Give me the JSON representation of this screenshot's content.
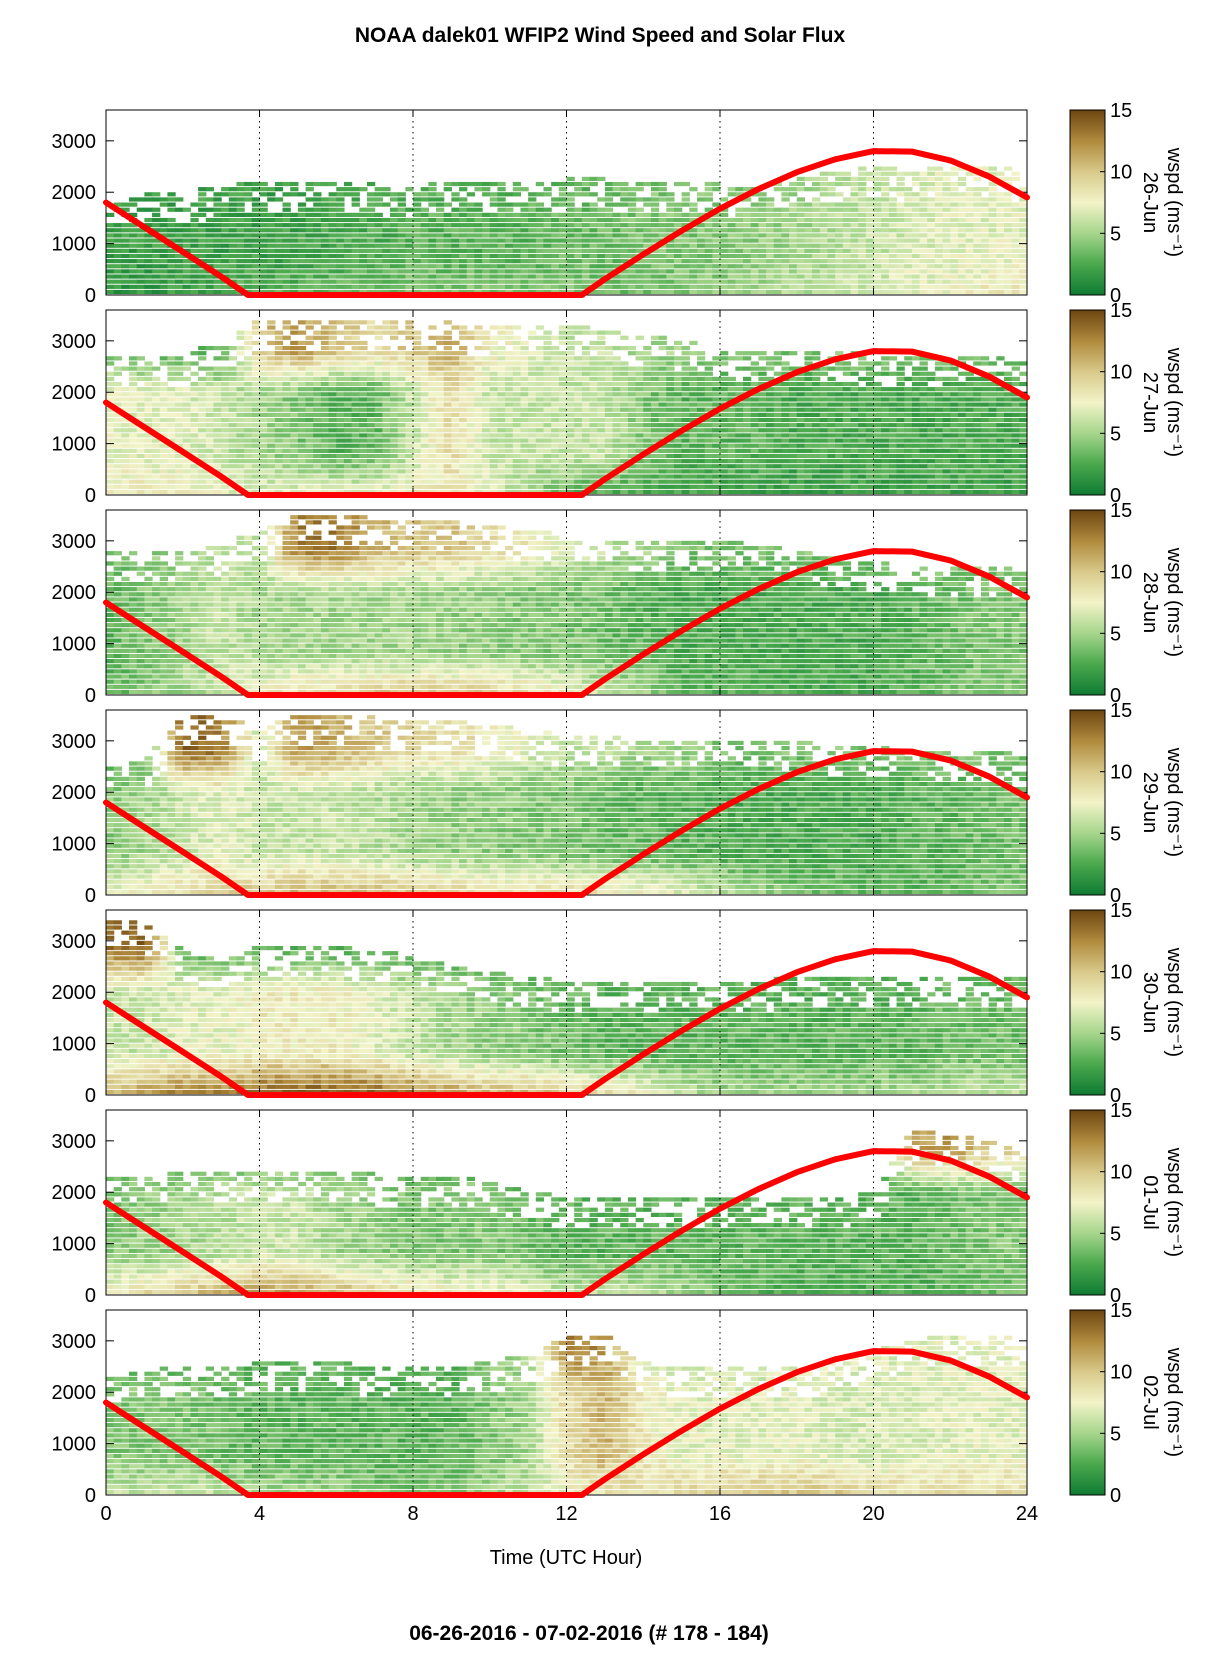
{
  "chart_data": {
    "type": "heatmap",
    "title": "NOAA dalek01 WFIP2 Wind Speed and Solar Flux",
    "footer": "06-26-2016 - 07-02-2016   (# 178 - 184)",
    "xlabel": "Time (UTC Hour)",
    "xlim": [
      0,
      24
    ],
    "x_ticks": [
      "0",
      "4",
      "8",
      "12",
      "16",
      "20",
      "24"
    ],
    "x_gridlines": [
      4,
      8,
      12,
      16,
      20
    ],
    "ylim": [
      0,
      3600
    ],
    "y_ticks": [
      "0",
      "1000",
      "2000",
      "3000"
    ],
    "colorbar": {
      "label": "wspd (ms⁻¹)",
      "ticks": [
        "0",
        "5",
        "10",
        "15"
      ],
      "range": [
        0,
        15
      ],
      "colors": [
        "#0f7a33",
        "#4aa84d",
        "#a6d68c",
        "#f2f3c8",
        "#d8c98a",
        "#b08a3c",
        "#6b4510"
      ]
    },
    "solar_flux_curve": {
      "color": "#ff0000",
      "x": [
        0,
        1,
        2,
        3,
        3.7,
        12.4,
        13,
        14,
        15,
        16,
        17,
        18,
        19,
        20,
        21,
        22,
        23,
        24
      ],
      "y": [
        1800,
        1320,
        840,
        360,
        0,
        0,
        310,
        790,
        1250,
        1680,
        2060,
        2390,
        2640,
        2800,
        2790,
        2620,
        2310,
        1900
      ]
    },
    "panels": [
      {
        "date": "26-Jun",
        "top_km": [
          1.9,
          1.95,
          2.0,
          2.1,
          2.2,
          2.2,
          2.2,
          2.15,
          2.1,
          2.2,
          2.2,
          2.2,
          2.25,
          2.25,
          2.2,
          2.2,
          2.15,
          2.1,
          2.3,
          2.4,
          2.5,
          2.4,
          2.5,
          2.5,
          2.4
        ],
        "low_speed": [
          1.5,
          1.5,
          2,
          2.5,
          3,
          3,
          3.5,
          3.5,
          4,
          4,
          4,
          4,
          4,
          3.5,
          3.5,
          4,
          4.5,
          5,
          5.5,
          6,
          6.5,
          7,
          7.5,
          8,
          8
        ],
        "mid_speed": [
          2,
          2,
          2,
          2,
          2,
          2,
          2.5,
          2.5,
          3,
          3,
          3,
          3,
          3.5,
          3.5,
          4,
          4,
          4,
          4.5,
          5,
          5.5,
          6,
          6.5,
          7,
          7,
          7
        ],
        "up_speed": [
          3,
          3,
          3,
          3,
          3,
          3,
          3,
          3,
          3,
          3,
          3,
          3,
          3,
          3,
          3,
          3,
          3,
          3,
          4,
          5,
          6,
          7,
          7,
          7,
          7
        ]
      },
      {
        "date": "27-Jun",
        "top_km": [
          2.7,
          2.7,
          2.7,
          3.0,
          3.45,
          3.4,
          3.4,
          3.35,
          3.45,
          3.4,
          3.3,
          3.3,
          3.3,
          3.2,
          3.1,
          3.0,
          2.9,
          2.8,
          2.8,
          2.8,
          2.7,
          2.7,
          2.7,
          2.7,
          2.6
        ],
        "low_speed": [
          8,
          8,
          8,
          7,
          7,
          7,
          7,
          7.5,
          8,
          8,
          7,
          5,
          3,
          2.5,
          2.5,
          2.5,
          2,
          2,
          2,
          2,
          2,
          2,
          2,
          2,
          2
        ],
        "mid_speed": [
          7,
          7,
          7,
          6,
          5,
          4,
          3,
          3,
          6,
          9,
          6,
          6,
          6,
          6,
          4,
          3,
          3,
          3,
          2.5,
          2.5,
          2.5,
          2.5,
          2.5,
          2.5,
          2.5
        ],
        "up_speed": [
          3,
          3,
          3,
          3,
          10,
          12,
          10,
          9,
          10,
          11,
          8,
          7,
          6,
          6,
          5,
          5,
          4,
          4,
          4,
          4,
          4,
          4,
          4,
          4,
          4
        ]
      },
      {
        "date": "28-Jun",
        "top_km": [
          2.8,
          2.8,
          2.8,
          2.9,
          3.2,
          3.5,
          3.5,
          3.45,
          3.4,
          3.4,
          3.3,
          3.2,
          3.1,
          3.0,
          3.0,
          3.0,
          3.0,
          3.0,
          2.8,
          2.7,
          2.6,
          2.5,
          2.5,
          2.5,
          2.4
        ],
        "low_speed": [
          3,
          4,
          5,
          6,
          8,
          9,
          9,
          10,
          10,
          10,
          10,
          9,
          8,
          6,
          5,
          3,
          3,
          2.5,
          2.5,
          2.5,
          2.5,
          3,
          3.5,
          4,
          4
        ],
        "mid_speed": [
          3,
          4,
          5,
          6,
          5,
          5,
          5,
          5,
          5,
          4.5,
          4.5,
          4,
          4,
          3.5,
          3,
          2.5,
          2.5,
          2.5,
          2.5,
          2.5,
          2.5,
          3,
          3.5,
          4,
          4
        ],
        "up_speed": [
          4,
          4,
          5,
          6,
          6,
          13,
          13,
          11,
          10,
          10,
          9,
          8,
          7,
          6,
          5,
          4,
          4,
          4,
          4,
          4,
          4,
          4,
          4,
          4,
          4
        ]
      },
      {
        "date": "29-Jun",
        "top_km": [
          2.6,
          2.6,
          3.5,
          3.5,
          3.2,
          3.5,
          3.5,
          3.45,
          3.4,
          3.4,
          3.3,
          3.2,
          3.1,
          3.1,
          3.0,
          3.0,
          3.0,
          3.0,
          3.0,
          2.9,
          2.9,
          2.8,
          2.8,
          2.8,
          2.7
        ],
        "low_speed": [
          7,
          8,
          9,
          10,
          10,
          11,
          11,
          11,
          10,
          10,
          9,
          9,
          9,
          8.5,
          8,
          7,
          6,
          5,
          4,
          3.5,
          3,
          3,
          3.5,
          4,
          4
        ],
        "mid_speed": [
          4,
          5,
          6,
          7,
          6,
          6,
          6,
          5.5,
          5,
          4.5,
          4.5,
          4,
          4,
          3.5,
          3,
          3,
          2.5,
          2.5,
          2.5,
          2.5,
          2.5,
          3,
          3,
          3.5,
          3.5
        ],
        "up_speed": [
          3,
          3,
          14,
          13,
          6,
          12,
          11,
          10,
          9,
          9,
          8,
          7,
          6,
          6,
          5,
          5,
          4,
          4,
          4,
          4,
          4,
          4,
          4,
          4,
          4
        ]
      },
      {
        "date": "30-Jun",
        "top_km": [
          3.4,
          3.4,
          2.8,
          2.6,
          2.9,
          2.95,
          2.9,
          2.8,
          2.7,
          2.5,
          2.4,
          2.3,
          2.2,
          2.2,
          2.2,
          2.2,
          2.2,
          2.2,
          2.3,
          2.3,
          2.3,
          2.3,
          2.3,
          2.3,
          2.3
        ],
        "low_speed": [
          11,
          12,
          13,
          13,
          14,
          14.5,
          14.5,
          14,
          13,
          12,
          11,
          11,
          10,
          9,
          8,
          6,
          5,
          5,
          5,
          5,
          5,
          5,
          6,
          6,
          6
        ],
        "mid_speed": [
          6,
          6,
          7,
          7,
          8,
          8,
          8,
          7,
          6,
          5,
          4.5,
          4,
          3.5,
          3,
          3,
          3,
          3,
          3,
          3,
          3,
          3,
          3,
          3.5,
          3.5,
          3.5
        ],
        "up_speed": [
          13,
          14,
          3,
          3,
          3,
          3,
          3,
          3,
          3,
          3,
          3,
          3,
          3,
          3,
          3,
          3,
          3,
          3,
          3,
          3,
          3,
          3,
          3,
          3,
          3
        ]
      },
      {
        "date": "01-Jul",
        "top_km": [
          2.3,
          2.3,
          2.4,
          2.4,
          2.4,
          2.45,
          2.4,
          2.35,
          2.3,
          2.3,
          2.2,
          2.0,
          1.9,
          1.9,
          1.9,
          1.9,
          1.9,
          1.9,
          1.9,
          1.9,
          2.0,
          3.2,
          3.1,
          3.0,
          2.7
        ],
        "low_speed": [
          8,
          9,
          10,
          11,
          12,
          12,
          11,
          10,
          9,
          8,
          8,
          7,
          6,
          6,
          6,
          5,
          4,
          3,
          2.5,
          2.5,
          2.5,
          2.5,
          3,
          3.5,
          4
        ],
        "mid_speed": [
          4,
          4.5,
          5,
          5.5,
          6,
          6,
          5,
          4.5,
          4,
          4,
          4,
          3.5,
          3,
          3,
          3,
          3,
          3,
          3,
          3,
          3,
          3,
          3,
          3.5,
          4,
          4
        ],
        "up_speed": [
          3,
          3,
          3,
          3,
          3,
          3,
          3,
          3,
          3,
          3,
          3,
          3,
          3,
          3,
          3,
          3,
          3,
          3,
          3,
          3,
          3,
          11,
          12,
          10,
          9
        ]
      },
      {
        "date": "02-Jul",
        "top_km": [
          2.3,
          2.4,
          2.5,
          2.5,
          2.6,
          2.6,
          2.6,
          2.5,
          2.5,
          2.5,
          2.6,
          2.7,
          3.1,
          3.1,
          2.6,
          2.5,
          2.5,
          2.5,
          2.5,
          2.6,
          2.8,
          3.0,
          3.1,
          3.1,
          3.0
        ],
        "low_speed": [
          6,
          6,
          6,
          6,
          5,
          5,
          5,
          4,
          3.5,
          4,
          5,
          6,
          7,
          8,
          9,
          9,
          10,
          10,
          10,
          10,
          9,
          9,
          9,
          9,
          9
        ],
        "mid_speed": [
          4,
          4,
          4,
          3.5,
          3,
          3,
          3,
          3,
          3,
          3,
          4,
          5,
          9,
          11,
          8,
          7,
          7,
          7,
          7,
          6.5,
          6.5,
          6.5,
          7,
          7,
          7
        ],
        "up_speed": [
          3,
          3,
          3,
          3,
          3,
          3,
          3,
          3,
          3,
          3,
          4,
          5,
          13,
          12,
          6,
          6,
          6,
          6,
          7,
          7,
          7,
          7,
          7,
          7,
          7
        ]
      }
    ]
  }
}
